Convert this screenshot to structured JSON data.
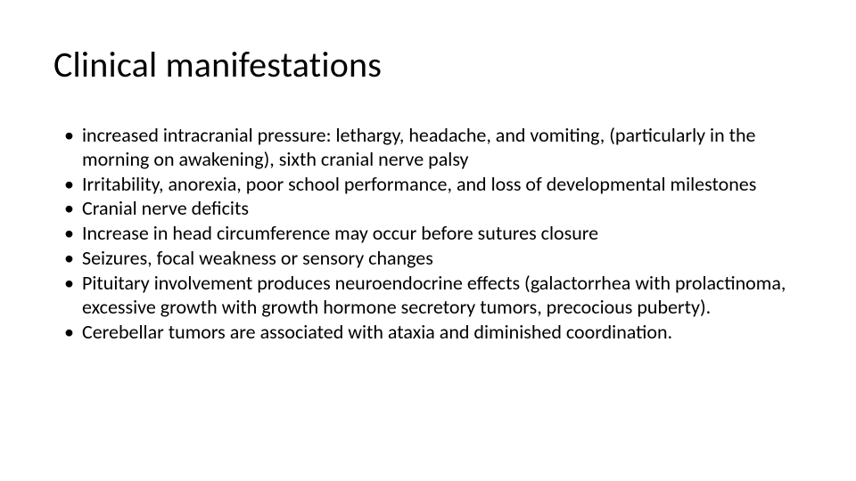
{
  "slide": {
    "title": "Clinical manifestations",
    "title_fontsize": 40,
    "title_color": "#000000",
    "body_fontsize": 22,
    "body_color": "#000000",
    "background_color": "#ffffff",
    "bullet_glyph": "•",
    "bullets": [
      "increased intracranial pressure: lethargy, headache, and vomiting, (particularly in the morning on awakening), sixth cranial nerve palsy",
      "Irritability, anorexia, poor school performance, and loss of developmental milestones",
      " Cranial nerve deficits",
      "Increase in head circumference may occur before sutures closure",
      "Seizures, focal weakness or sensory changes",
      "Pituitary involvement produces neuroendocrine effects (galactorrhea with prolactinoma, excessive growth with growth hormone secretory tumors, precocious puberty).",
      "Cerebellar tumors are associated with ataxia and diminished coordination."
    ]
  }
}
